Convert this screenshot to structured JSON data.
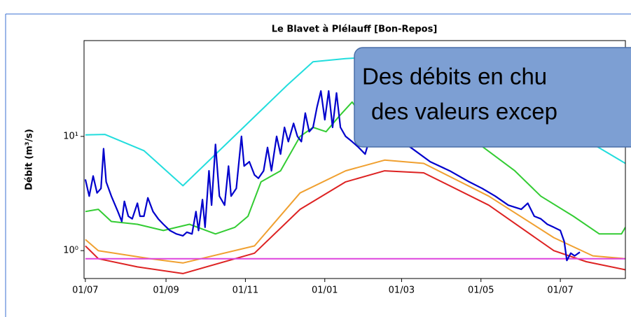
{
  "chart_data": {
    "type": "line",
    "title": "Le Blavet à Plélauff [Bon-Repos]",
    "ylabel": "Débit (m³/s)",
    "yscale": "log",
    "xlim": [
      -1,
      415
    ],
    "ylim": [
      0.57,
      69
    ],
    "xticks": [
      {
        "value": 0,
        "label": "01/07"
      },
      {
        "value": 62,
        "label": "01/09"
      },
      {
        "value": 123,
        "label": "01/11"
      },
      {
        "value": 184,
        "label": "01/01"
      },
      {
        "value": 243,
        "label": "01/03"
      },
      {
        "value": 304,
        "label": "01/05"
      },
      {
        "value": 365,
        "label": "01/07"
      }
    ],
    "yticks": [
      {
        "value": 1,
        "label": "10⁰"
      },
      {
        "value": 10,
        "label": "10¹"
      }
    ],
    "annotation": [
      "Des débits en chu",
      "des valeurs excep"
    ],
    "series": [
      {
        "color": "#22dddd",
        "x": [
          0,
          15,
          45,
          75,
          155,
          175,
          200,
          230,
          260,
          330,
          380,
          415
        ],
        "values": [
          10.3,
          10.4,
          7.5,
          3.7,
          28,
          45,
          48,
          50,
          45,
          25,
          10,
          5.8
        ]
      },
      {
        "color": "#33cc33",
        "x": [
          0,
          10,
          20,
          40,
          60,
          80,
          100,
          115,
          125,
          135,
          150,
          165,
          175,
          185,
          195,
          205,
          215,
          240,
          300,
          330,
          350,
          375,
          395,
          412,
          415
        ],
        "values": [
          2.2,
          2.3,
          1.8,
          1.7,
          1.5,
          1.7,
          1.4,
          1.6,
          2.0,
          4.0,
          5,
          10,
          12,
          11,
          15,
          20,
          14,
          12,
          9,
          5,
          3,
          2,
          1.4,
          1.4,
          1.6
        ]
      },
      {
        "color": "#f0a030",
        "x": [
          0,
          10,
          50,
          75,
          130,
          165,
          200,
          230,
          260,
          310,
          360,
          390,
          415
        ],
        "values": [
          1.25,
          1.0,
          0.85,
          0.78,
          1.1,
          3.2,
          5,
          6.2,
          5.8,
          3,
          1.3,
          0.9,
          0.85
        ]
      },
      {
        "color": "#dd2222",
        "x": [
          0,
          10,
          40,
          75,
          130,
          165,
          200,
          230,
          260,
          310,
          360,
          385,
          415
        ],
        "values": [
          1.1,
          0.85,
          0.72,
          0.63,
          0.95,
          2.3,
          4,
          5,
          4.8,
          2.5,
          1.0,
          0.8,
          0.68
        ]
      },
      {
        "color": "#dd44dd",
        "x": [
          0,
          415
        ],
        "values": [
          0.85,
          0.85
        ]
      },
      {
        "color": "#0000cc",
        "x": [
          0,
          3,
          6,
          9,
          12,
          14,
          16,
          20,
          25,
          28,
          30,
          33,
          36,
          40,
          42,
          45,
          48,
          52,
          56,
          60,
          65,
          70,
          75,
          78,
          82,
          85,
          87,
          90,
          92,
          95,
          97,
          100,
          103,
          107,
          110,
          112,
          116,
          120,
          122,
          126,
          130,
          133,
          137,
          140,
          143,
          147,
          150,
          153,
          156,
          160,
          163,
          166,
          169,
          172,
          175,
          178,
          181,
          184,
          187,
          190,
          193,
          196,
          200,
          205,
          210,
          215,
          220,
          225,
          235,
          250,
          265,
          280,
          295,
          305,
          315,
          325,
          335,
          340,
          345,
          350,
          355,
          360,
          365,
          368,
          370,
          373,
          376,
          380
        ],
        "values": [
          4.2,
          3.0,
          4.5,
          3.2,
          3.5,
          7.8,
          4,
          3,
          2.2,
          1.8,
          2.7,
          2,
          1.9,
          2.6,
          2.0,
          2.0,
          2.9,
          2.2,
          1.9,
          1.7,
          1.5,
          1.4,
          1.35,
          1.45,
          1.4,
          2.2,
          1.5,
          2.8,
          1.6,
          5,
          2.5,
          8.5,
          3,
          2.5,
          5.5,
          3,
          3.5,
          10,
          5.5,
          6,
          4.6,
          4.3,
          5,
          8,
          5,
          10,
          7,
          12,
          9,
          13,
          10,
          9,
          16,
          11,
          12,
          18,
          25,
          14,
          25,
          12,
          24,
          12,
          10,
          9,
          8,
          7,
          11,
          9,
          10,
          8,
          6,
          5,
          4,
          3.5,
          3,
          2.5,
          2.3,
          2.6,
          2,
          1.9,
          1.7,
          1.6,
          1.5,
          1.2,
          0.82,
          0.95,
          0.9,
          0.97
        ]
      }
    ]
  }
}
